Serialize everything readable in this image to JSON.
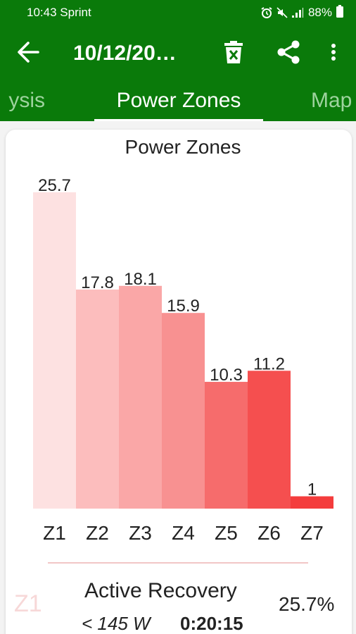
{
  "status_bar": {
    "time": "10:43",
    "carrier": "Sprint",
    "battery": "88%",
    "icons": [
      "alarm-icon",
      "mute-icon",
      "signal-icon",
      "battery-icon"
    ]
  },
  "app_bar": {
    "title": "10/12/20…",
    "icons": [
      "back-arrow-icon",
      "delete-icon",
      "share-icon",
      "more-vert-icon"
    ]
  },
  "tabs": [
    {
      "label": "ysis",
      "selected": false
    },
    {
      "label": "Power Zones",
      "selected": true
    },
    {
      "label": "Map",
      "selected": false
    }
  ],
  "colors": {
    "app_bar": "#0a7a0a",
    "tab_inactive": "#9ed39e",
    "zone_colors": [
      "#fde1e1",
      "#fcbdbd",
      "#faa7a7",
      "#f89191",
      "#f66c6c",
      "#f54f4f",
      "#f43c3c"
    ],
    "divider": "#f2c6c6"
  },
  "chart_data": {
    "type": "bar",
    "title": "Power Zones",
    "categories": [
      "Z1",
      "Z2",
      "Z3",
      "Z4",
      "Z5",
      "Z6",
      "Z7"
    ],
    "values": [
      25.7,
      17.8,
      18.1,
      15.9,
      10.3,
      11.2,
      1
    ],
    "value_labels": [
      "25.7",
      "17.8",
      "18.1",
      "15.9",
      "10.3",
      "11.2",
      "1"
    ],
    "ylim": [
      0,
      25.7
    ],
    "grid": false,
    "legend": "none"
  },
  "zone_detail": {
    "zone": "Z1",
    "name": "Active Recovery",
    "power": "< 145 W",
    "time": "0:20:15",
    "percent": "25.7%"
  }
}
